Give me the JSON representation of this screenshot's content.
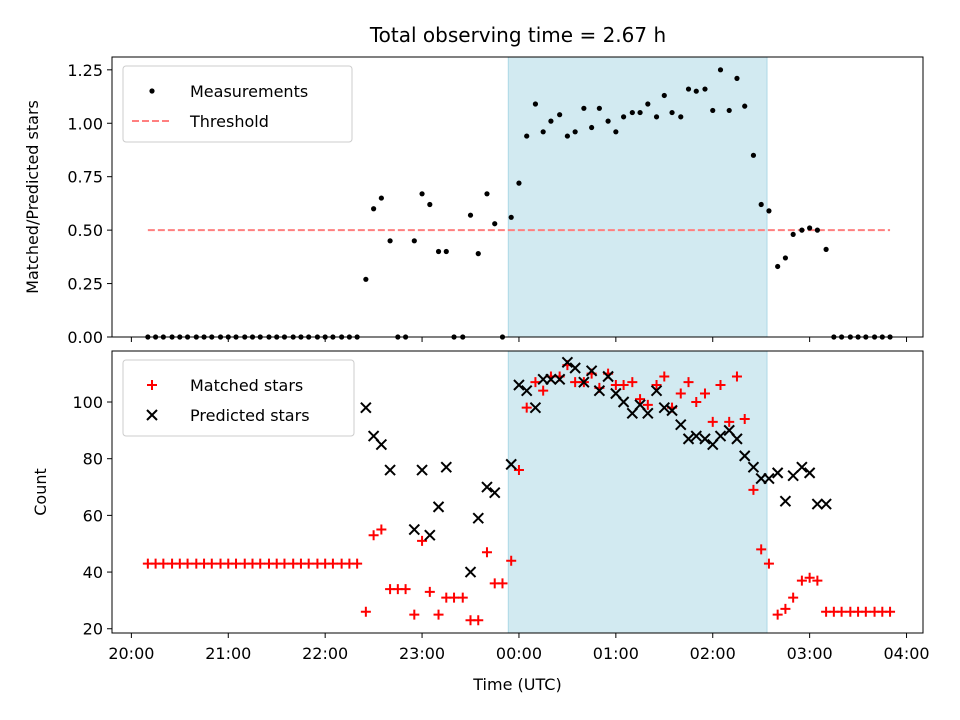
{
  "title": "Total observing time = 2.67 h",
  "chart_data": [
    {
      "type": "scatter",
      "panel": "top",
      "title": "Total observing time = 2.67 h",
      "ylabel": "Matched/Predicted stars",
      "xlabel": "",
      "xlim": [
        19.8,
        28.17
      ],
      "ylim": [
        0,
        1.31
      ],
      "yticks": [
        0.0,
        0.25,
        0.5,
        0.75,
        1.0,
        1.25
      ],
      "ytick_labels": [
        "0.00",
        "0.25",
        "0.50",
        "0.75",
        "1.00",
        "1.25"
      ],
      "highlight_span": {
        "x0": 23.89,
        "x1": 26.56,
        "color": "#add8e6"
      },
      "legend": {
        "position": "upper-left",
        "entries": [
          "Measurements",
          "Threshold"
        ]
      },
      "colors": {
        "measurements": "#000000",
        "threshold": "#ff7f7f"
      },
      "threshold": {
        "name": "Threshold",
        "value": 0.5,
        "x0": 20.17,
        "x1": 27.83
      },
      "series": [
        {
          "name": "Measurements",
          "x": [
            20.17,
            20.25,
            20.33,
            20.42,
            20.5,
            20.58,
            20.67,
            20.75,
            20.83,
            20.92,
            21.0,
            21.08,
            21.17,
            21.25,
            21.33,
            21.42,
            21.5,
            21.58,
            21.67,
            21.75,
            21.83,
            21.92,
            22.0,
            22.08,
            22.17,
            22.25,
            22.33,
            22.42,
            22.5,
            22.58,
            22.67,
            22.75,
            22.83,
            22.92,
            23.0,
            23.08,
            23.17,
            23.25,
            23.33,
            23.42,
            23.5,
            23.58,
            23.67,
            23.75,
            23.83,
            23.92,
            24.0,
            24.08,
            24.17,
            24.25,
            24.33,
            24.42,
            24.5,
            24.58,
            24.67,
            24.75,
            24.83,
            24.92,
            25.0,
            25.08,
            25.17,
            25.25,
            25.33,
            25.42,
            25.5,
            25.58,
            25.67,
            25.75,
            25.83,
            25.92,
            26.0,
            26.08,
            26.17,
            26.25,
            26.33,
            26.42,
            26.5,
            26.58,
            26.67,
            26.75,
            26.83,
            26.92,
            27.0,
            27.08,
            27.17,
            27.25,
            27.33,
            27.42,
            27.5,
            27.58,
            27.67,
            27.75,
            27.83
          ],
          "y": [
            0,
            0,
            0,
            0,
            0,
            0,
            0,
            0,
            0,
            0,
            0,
            0,
            0,
            0,
            0,
            0,
            0,
            0,
            0,
            0,
            0,
            0,
            0,
            0,
            0,
            0,
            0,
            0.27,
            0.6,
            0.65,
            0.45,
            0,
            0,
            0.45,
            0.67,
            0.62,
            0.4,
            0.4,
            0,
            0,
            0.57,
            0.39,
            0.67,
            0.53,
            0,
            0.56,
            0.72,
            0.94,
            1.09,
            0.96,
            1.01,
            1.04,
            0.94,
            0.96,
            1.07,
            0.98,
            1.07,
            1.01,
            0.96,
            1.03,
            1.05,
            1.05,
            1.09,
            1.03,
            1.13,
            1.05,
            1.03,
            1.16,
            1.15,
            1.16,
            1.06,
            1.25,
            1.06,
            1.21,
            1.08,
            0.85,
            0.62,
            0.59,
            0.33,
            0.37,
            0.48,
            0.5,
            0.51,
            0.5,
            0.41,
            0,
            0,
            0,
            0,
            0,
            0,
            0,
            0
          ]
        }
      ]
    },
    {
      "type": "scatter",
      "panel": "bottom",
      "xlabel": "Time (UTC)",
      "ylabel": "Count",
      "xlim": [
        19.8,
        28.17
      ],
      "ylim": [
        18.5,
        118
      ],
      "xticks": [
        20,
        21,
        22,
        23,
        24,
        25,
        26,
        27,
        28
      ],
      "xtick_labels": [
        "20:00",
        "21:00",
        "22:00",
        "23:00",
        "00:00",
        "01:00",
        "02:00",
        "03:00",
        "04:00"
      ],
      "yticks": [
        20,
        40,
        60,
        80,
        100
      ],
      "ytick_labels": [
        "20",
        "40",
        "60",
        "80",
        "100"
      ],
      "highlight_span": {
        "x0": 23.89,
        "x1": 26.56,
        "color": "#add8e6"
      },
      "legend": {
        "position": "upper-left",
        "entries": [
          "Matched stars",
          "Predicted stars"
        ]
      },
      "colors": {
        "matched": "#ff0000",
        "predicted": "#000000"
      },
      "series": [
        {
          "name": "Matched stars",
          "marker": "plus",
          "x": [
            20.17,
            20.25,
            20.33,
            20.42,
            20.5,
            20.58,
            20.67,
            20.75,
            20.83,
            20.92,
            21.0,
            21.08,
            21.17,
            21.25,
            21.33,
            21.42,
            21.5,
            21.58,
            21.67,
            21.75,
            21.83,
            21.92,
            22.0,
            22.08,
            22.17,
            22.25,
            22.33,
            22.42,
            22.5,
            22.58,
            22.67,
            22.75,
            22.83,
            22.92,
            23.0,
            23.08,
            23.17,
            23.25,
            23.33,
            23.42,
            23.5,
            23.58,
            23.67,
            23.75,
            23.83,
            23.92,
            24.0,
            24.08,
            24.17,
            24.25,
            24.33,
            24.42,
            24.5,
            24.58,
            24.67,
            24.75,
            24.83,
            24.92,
            25.0,
            25.08,
            25.17,
            25.25,
            25.33,
            25.42,
            25.5,
            25.58,
            25.67,
            25.75,
            25.83,
            25.92,
            26.0,
            26.08,
            26.17,
            26.25,
            26.33,
            26.42,
            26.5,
            26.58,
            26.67,
            26.75,
            26.83,
            26.92,
            27.0,
            27.08,
            27.17,
            27.25,
            27.33,
            27.42,
            27.5,
            27.58,
            27.67,
            27.75,
            27.83
          ],
          "y": [
            43,
            43,
            43,
            43,
            43,
            43,
            43,
            43,
            43,
            43,
            43,
            43,
            43,
            43,
            43,
            43,
            43,
            43,
            43,
            43,
            43,
            43,
            43,
            43,
            43,
            43,
            43,
            26,
            53,
            55,
            34,
            34,
            34,
            25,
            51,
            33,
            25,
            31,
            31,
            31,
            23,
            23,
            47,
            36,
            36,
            44,
            76,
            98,
            107,
            104,
            109,
            109,
            113,
            107,
            107,
            110,
            105,
            110,
            106,
            106,
            107,
            101,
            99,
            106,
            109,
            98,
            103,
            107,
            100,
            103,
            93,
            106,
            93,
            109,
            94,
            69,
            48,
            43,
            25,
            27,
            31,
            37,
            38,
            37,
            26,
            26,
            26,
            26,
            26,
            26,
            26,
            26,
            26
          ]
        },
        {
          "name": "Predicted stars",
          "marker": "x",
          "x": [
            22.42,
            22.5,
            22.58,
            22.67,
            22.92,
            23.0,
            23.08,
            23.17,
            23.25,
            23.5,
            23.58,
            23.67,
            23.75,
            23.92,
            24.0,
            24.08,
            24.17,
            24.25,
            24.33,
            24.42,
            24.5,
            24.58,
            24.67,
            24.75,
            24.83,
            24.92,
            25.0,
            25.08,
            25.17,
            25.25,
            25.33,
            25.42,
            25.5,
            25.58,
            25.67,
            25.75,
            25.83,
            25.92,
            26.0,
            26.08,
            26.17,
            26.25,
            26.33,
            26.42,
            26.5,
            26.58,
            26.67,
            26.75,
            26.83,
            26.92,
            27.0,
            27.08,
            27.17
          ],
          "y": [
            98,
            88,
            85,
            76,
            55,
            76,
            53,
            63,
            77,
            40,
            59,
            70,
            68,
            78,
            106,
            104,
            98,
            108,
            108,
            108,
            114,
            112,
            107,
            111,
            104,
            109,
            103,
            100,
            96,
            99,
            96,
            104,
            98,
            97,
            92,
            87,
            88,
            87,
            85,
            88,
            90,
            87,
            81,
            77,
            73,
            73,
            75,
            65,
            74,
            77,
            75,
            64,
            64
          ]
        }
      ]
    }
  ]
}
